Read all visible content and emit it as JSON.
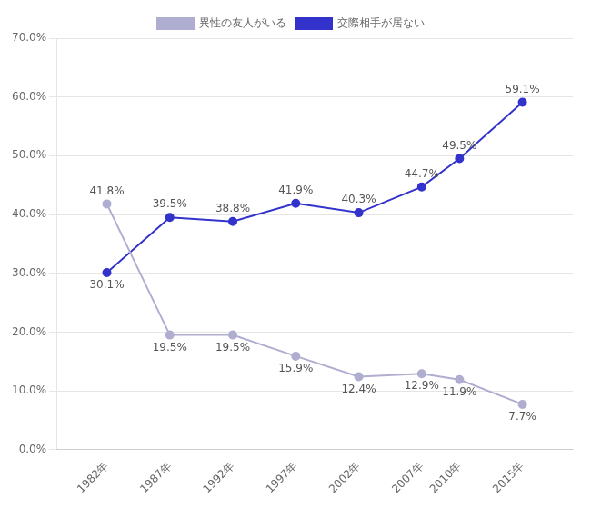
{
  "chart_data": {
    "type": "line",
    "x": [
      1982,
      1987,
      1992,
      1997,
      2002,
      2007,
      2010,
      2015
    ],
    "xlim": [
      1978,
      2019
    ],
    "xticks": [
      {
        "value": 1982,
        "label": "1982年"
      },
      {
        "value": 1987,
        "label": "1987年"
      },
      {
        "value": 1992,
        "label": "1992年"
      },
      {
        "value": 1997,
        "label": "1997年"
      },
      {
        "value": 2002,
        "label": "2002年"
      },
      {
        "value": 2007,
        "label": "2007年"
      },
      {
        "value": 2010,
        "label": "2010年"
      },
      {
        "value": 2015,
        "label": "2015年"
      }
    ],
    "ylim": [
      0,
      70
    ],
    "yticks": [
      {
        "value": 0,
        "label": "0.0%"
      },
      {
        "value": 10,
        "label": "10.0%"
      },
      {
        "value": 20,
        "label": "20.0%"
      },
      {
        "value": 30,
        "label": "30.0%"
      },
      {
        "value": 40,
        "label": "40.0%"
      },
      {
        "value": 50,
        "label": "50.0%"
      },
      {
        "value": 60,
        "label": "60.0%"
      },
      {
        "value": 70,
        "label": "70.0%"
      }
    ],
    "grid": true,
    "legend": "top",
    "data_labels": true,
    "series": [
      {
        "name": "異性の友人がいる",
        "color": "#b0aed0",
        "marker": "circle",
        "values": [
          41.8,
          19.5,
          19.5,
          15.9,
          12.4,
          12.9,
          11.9,
          7.7
        ],
        "value_labels": [
          "41.8%",
          "19.5%",
          "19.5%",
          "15.9%",
          "12.4%",
          "12.9%",
          "11.9%",
          "7.7%"
        ]
      },
      {
        "name": "交際相手が居ない",
        "color": "#3333cc",
        "marker": "circle",
        "values": [
          30.1,
          39.5,
          38.8,
          41.9,
          40.3,
          44.7,
          49.5,
          59.1
        ],
        "value_labels": [
          "30.1%",
          "39.5%",
          "38.8%",
          "41.9%",
          "40.3%",
          "44.7%",
          "49.5%",
          "59.1%"
        ]
      }
    ]
  }
}
